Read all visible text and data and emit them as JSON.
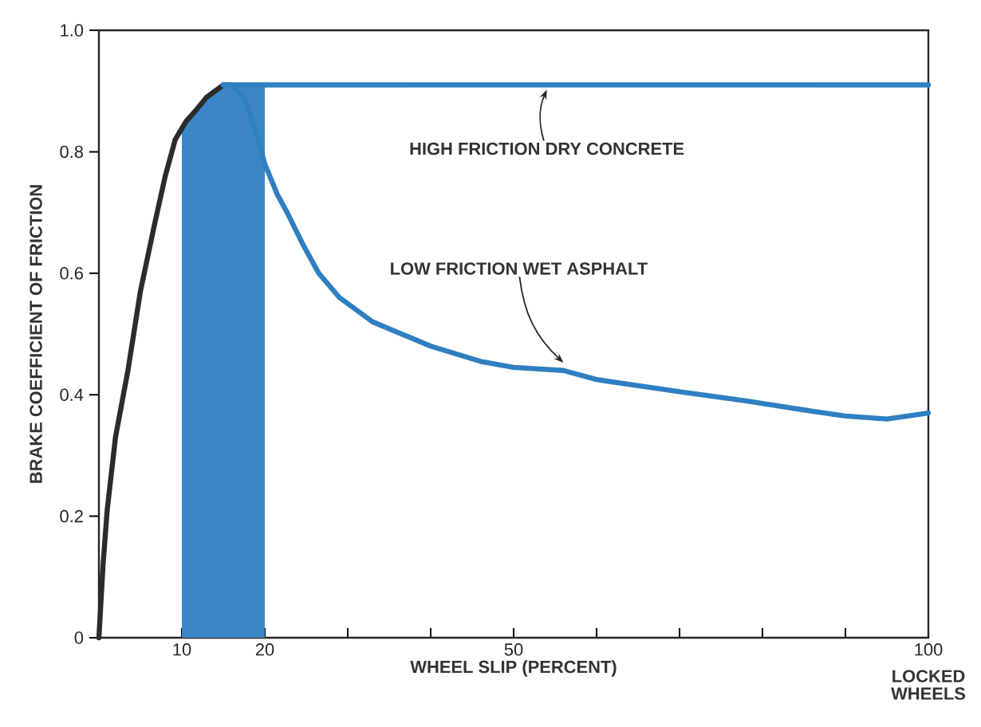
{
  "chart_data": {
    "type": "line",
    "xlabel": "WHEEL SLIP (PERCENT)",
    "ylabel": "BRAKE COEFFICIENT OF FRICTION",
    "xlim": [
      0,
      100
    ],
    "ylim": [
      0,
      1.0
    ],
    "xticks": [
      10,
      20,
      {
        "value": 30,
        "label": null
      },
      {
        "value": 40,
        "label": null
      },
      50,
      {
        "value": 60,
        "label": null
      },
      {
        "value": 70,
        "label": null
      },
      {
        "value": 80,
        "label": null
      },
      {
        "value": 90,
        "label": null
      },
      100
    ],
    "yticks": [
      0,
      0.2,
      0.4,
      0.6,
      0.8,
      {
        "value": 1.0,
        "label": "1.0"
      }
    ],
    "grid": false,
    "series": [
      {
        "color": "#2b2b2b",
        "x": [
          0,
          0.5,
          1,
          2,
          3.5,
          5,
          6.7,
          8,
          9.2,
          10.5,
          11.8,
          13,
          15
        ],
        "values": [
          0,
          0.12,
          0.21,
          0.33,
          0.44,
          0.57,
          0.68,
          0.76,
          0.82,
          0.85,
          0.87,
          0.89,
          0.91
        ]
      },
      {
        "color": "#2f7fc1",
        "x": [
          15,
          100
        ],
        "values": [
          0.91,
          0.91
        ]
      },
      {
        "color": "#2f7fc1",
        "x": [
          15,
          16,
          17.5,
          19,
          20,
          21.5,
          22.7,
          24.5,
          26.5,
          29,
          33,
          40,
          46,
          50,
          56,
          60,
          70,
          78,
          85,
          90,
          95,
          100
        ],
        "values": [
          0.91,
          0.91,
          0.89,
          0.83,
          0.78,
          0.73,
          0.7,
          0.65,
          0.6,
          0.56,
          0.52,
          0.48,
          0.455,
          0.445,
          0.44,
          0.425,
          0.405,
          0.39,
          0.375,
          0.365,
          0.36,
          0.37
        ]
      }
    ],
    "bands": [
      {
        "axis": "x",
        "from": 10,
        "to": 20,
        "color": "#3b86c6"
      }
    ],
    "annotations": [
      {
        "text": "HIGH FRICTION DRY CONCRETE",
        "x": 54,
        "y": 0.91
      },
      {
        "text": "LOW FRICTION WET ASPHALT",
        "x": 56,
        "y": 0.445
      },
      "LOCKED WHEELS"
    ]
  }
}
